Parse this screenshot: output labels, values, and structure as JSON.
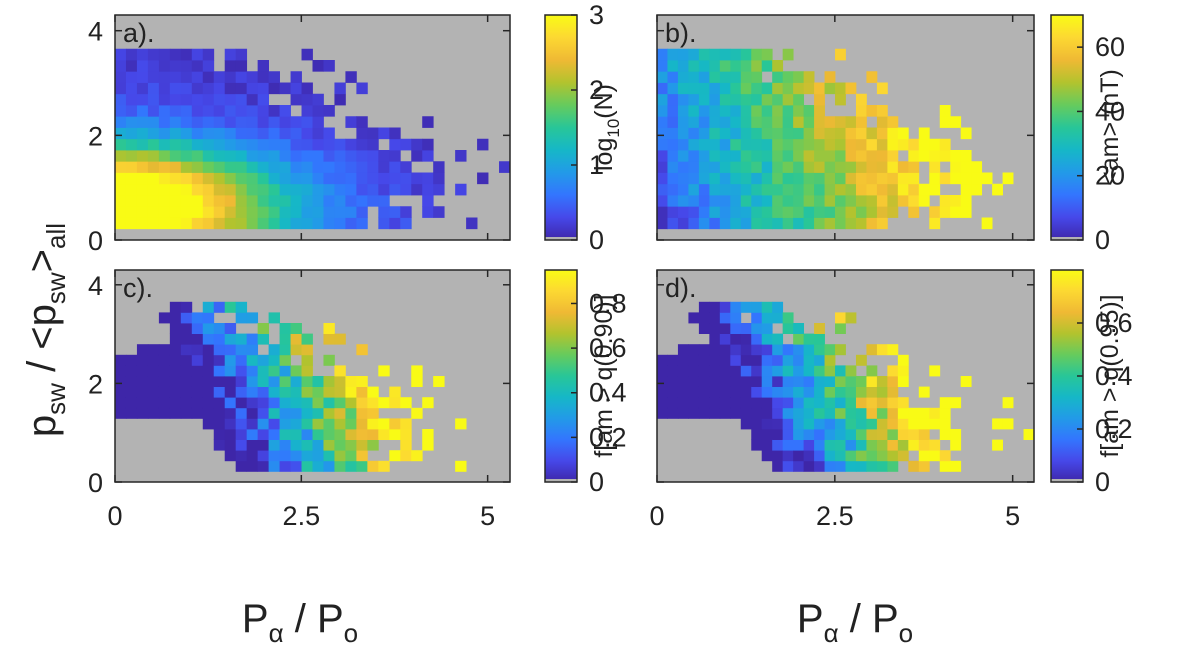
{
  "colors": {
    "background_missing": "#b3b3b3",
    "axis": "#262626",
    "colormap": [
      "#3e26a8",
      "#4648e9",
      "#3375fe",
      "#229ae8",
      "#16b7c7",
      "#28c698",
      "#66cb5d",
      "#b2c32e",
      "#efb934",
      "#fcd832",
      "#f9fb15"
    ]
  },
  "figure": {
    "ylabel_main": "p",
    "ylabel_sub": "sw",
    "ylabel_mid": " / <p",
    "ylabel_sub2": "sw",
    "ylabel_end": ">",
    "ylabel_sub3": "all",
    "xlabel_main": "P",
    "xlabel_sub": "α",
    "xlabel_mid": " / P",
    "xlabel_sub2": "o"
  },
  "chart_data": [
    {
      "type": "heatmap",
      "panel": "a).",
      "x_range": [
        0,
        5.3
      ],
      "y_range": [
        0,
        4.3
      ],
      "x_ticks": [
        "0",
        "2.5",
        "5"
      ],
      "y_ticks": [
        "0",
        "2",
        "4"
      ],
      "x_tick_values": [
        0,
        2.5,
        5
      ],
      "y_tick_values": [
        0,
        2,
        4
      ],
      "show_x_tick_labels": false,
      "show_y_tick_labels": true,
      "colorbar": {
        "label": "log",
        "label_sub": "10",
        "label_end": "(N)",
        "range": [
          0,
          3
        ],
        "ticks": [
          "0",
          "1",
          "2",
          "3"
        ],
        "tick_values": [
          0,
          1,
          2,
          3
        ]
      },
      "pattern": "count",
      "seed": 11
    },
    {
      "type": "heatmap",
      "panel": "b).",
      "x_range": [
        0,
        5.3
      ],
      "y_range": [
        0,
        4.3
      ],
      "x_ticks": [
        "0",
        "2.5",
        "5"
      ],
      "y_ticks": [
        "0",
        "2",
        "4"
      ],
      "x_tick_values": [
        0,
        2.5,
        5
      ],
      "y_tick_values": [
        0,
        2,
        4
      ],
      "show_x_tick_labels": false,
      "show_y_tick_labels": false,
      "colorbar": {
        "label": "<am> (nT)",
        "label_sub": "",
        "label_end": "",
        "range": [
          0,
          70
        ],
        "ticks": [
          "0",
          "20",
          "40",
          "60"
        ],
        "tick_values": [
          0,
          20,
          40,
          60
        ]
      },
      "pattern": "mean",
      "seed": 23
    },
    {
      "type": "heatmap",
      "panel": "c).",
      "x_range": [
        0,
        5.3
      ],
      "y_range": [
        0,
        4.3
      ],
      "x_ticks": [
        "0",
        "2.5",
        "5"
      ],
      "y_ticks": [
        "0",
        "2",
        "4"
      ],
      "x_tick_values": [
        0,
        2.5,
        5
      ],
      "y_tick_values": [
        0,
        2,
        4
      ],
      "show_x_tick_labels": true,
      "show_y_tick_labels": true,
      "colorbar": {
        "label": "f[am > q(0.90)]",
        "label_sub": "",
        "label_end": "",
        "range": [
          0,
          0.95
        ],
        "ticks": [
          "0",
          "0.2",
          "0.4",
          "0.6",
          "0.8"
        ],
        "tick_values": [
          0,
          0.2,
          0.4,
          0.6,
          0.8
        ]
      },
      "pattern": "frac",
      "seed": 37
    },
    {
      "type": "heatmap",
      "panel": "d).",
      "x_range": [
        0,
        5.3
      ],
      "y_range": [
        0,
        4.3
      ],
      "x_ticks": [
        "0",
        "2.5",
        "5"
      ],
      "y_ticks": [
        "0",
        "2",
        "4"
      ],
      "x_tick_values": [
        0,
        2.5,
        5
      ],
      "y_tick_values": [
        0,
        2,
        4
      ],
      "show_x_tick_labels": true,
      "show_y_tick_labels": false,
      "colorbar": {
        "label": "f[am > q(0.95)]",
        "label_sub": "",
        "label_end": "",
        "range": [
          0,
          0.8
        ],
        "ticks": [
          "0",
          "0.2",
          "0.4",
          "0.6"
        ],
        "tick_values": [
          0,
          0.2,
          0.4,
          0.6
        ]
      },
      "pattern": "frac",
      "seed": 53
    }
  ]
}
